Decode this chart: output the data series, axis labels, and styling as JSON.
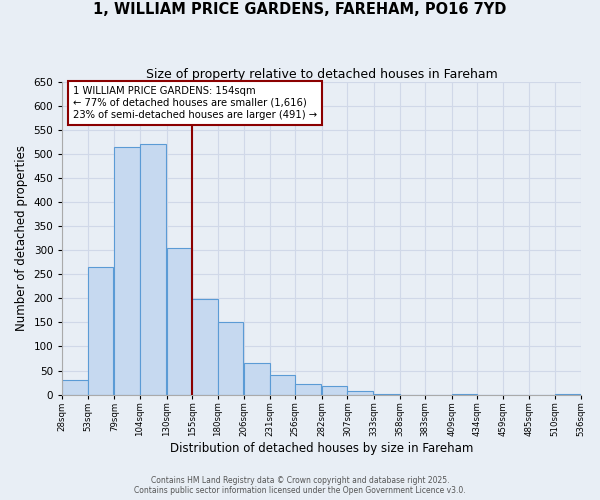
{
  "title": "1, WILLIAM PRICE GARDENS, FAREHAM, PO16 7YD",
  "subtitle": "Size of property relative to detached houses in Fareham",
  "xlabel": "Distribution of detached houses by size in Fareham",
  "ylabel": "Number of detached properties",
  "bar_left_edges": [
    28,
    53,
    79,
    104,
    130,
    155,
    180,
    206,
    231,
    256,
    282,
    307,
    333,
    358,
    383,
    409,
    434,
    459,
    485,
    510
  ],
  "bar_heights": [
    30,
    265,
    515,
    520,
    305,
    198,
    150,
    65,
    40,
    22,
    18,
    7,
    2,
    0,
    0,
    1,
    0,
    0,
    0,
    1
  ],
  "bin_width": 25,
  "bar_color": "#c6d9f0",
  "bar_edge_color": "#5b9bd5",
  "ylim": [
    0,
    650
  ],
  "yticks": [
    0,
    50,
    100,
    150,
    200,
    250,
    300,
    350,
    400,
    450,
    500,
    550,
    600,
    650
  ],
  "x_tick_labels": [
    "28sqm",
    "53sqm",
    "79sqm",
    "104sqm",
    "130sqm",
    "155sqm",
    "180sqm",
    "206sqm",
    "231sqm",
    "256sqm",
    "282sqm",
    "307sqm",
    "333sqm",
    "358sqm",
    "383sqm",
    "409sqm",
    "434sqm",
    "459sqm",
    "485sqm",
    "510sqm",
    "536sqm"
  ],
  "property_line_x": 155,
  "property_line_color": "#8b0000",
  "annotation_line1": "1 WILLIAM PRICE GARDENS: 154sqm",
  "annotation_line2": "← 77% of detached houses are smaller (1,616)",
  "annotation_line3": "23% of semi-detached houses are larger (491) →",
  "annotation_box_color": "#8b0000",
  "grid_color": "#d0d8e8",
  "background_color": "#e8eef5",
  "footer1": "Contains HM Land Registry data © Crown copyright and database right 2025.",
  "footer2": "Contains public sector information licensed under the Open Government Licence v3.0."
}
